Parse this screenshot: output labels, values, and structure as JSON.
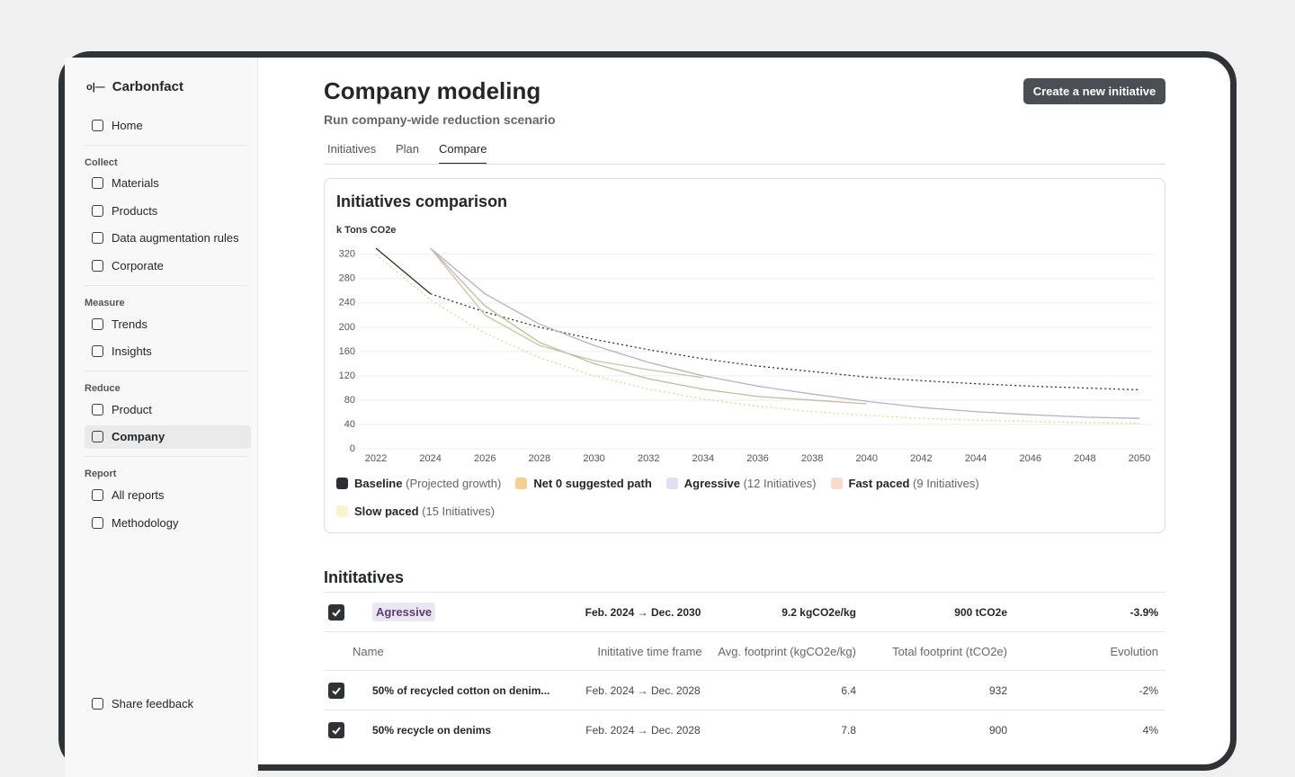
{
  "sidebar": {
    "brand": "Carbonfact",
    "home": "Home",
    "sections": [
      {
        "title": "Collect",
        "items": [
          "Materials",
          "Products",
          "Data augmentation rules",
          "Corporate"
        ]
      },
      {
        "title": "Measure",
        "items": [
          "Trends",
          "Insights"
        ]
      },
      {
        "title": "Reduce",
        "items": [
          "Product",
          "Company"
        ]
      },
      {
        "title": "Report",
        "items": [
          "All reports",
          "Methodology"
        ]
      }
    ],
    "active": [
      2,
      1
    ],
    "footer": "Share feedback"
  },
  "header": {
    "title": "Company modeling",
    "subtitle": "Run company-wide reduction scenario",
    "button": "Create a new initiative"
  },
  "tabs": {
    "items": [
      "Initiatives",
      "Plan",
      "Compare"
    ],
    "active": 2
  },
  "chart_data": {
    "type": "line",
    "title": "Initiatives comparison",
    "y_label": "k Tons CO2e",
    "x": [
      2022,
      2024,
      2026,
      2028,
      2030,
      2032,
      2034,
      2036,
      2038,
      2040,
      2042,
      2044,
      2046,
      2048,
      2050
    ],
    "xlim": [
      2022,
      2050
    ],
    "xticks": [
      2022,
      2024,
      2026,
      2028,
      2030,
      2032,
      2034,
      2036,
      2038,
      2040,
      2042,
      2044,
      2046,
      2048,
      2050
    ],
    "ylim": [
      0,
      330
    ],
    "yticks": [
      0,
      40,
      80,
      120,
      160,
      200,
      240,
      280,
      320
    ],
    "grid": true,
    "series": [
      {
        "name": "Baseline",
        "detail": "(Projected growth)",
        "color": "#2b2f33",
        "legend_color": "#2b2f33",
        "solid_until": 2024,
        "values": [
          330,
          255,
          225,
          200,
          180,
          163,
          148,
          136,
          127,
          118,
          112,
          107,
          103,
          100,
          97
        ]
      },
      {
        "name": "Net 0 suggested path",
        "color": "#e4d58c",
        "legend_color": "#f7cf94",
        "dash": true,
        "values": [
          320,
          245,
          190,
          150,
          120,
          98,
          82,
          70,
          61,
          55,
          50,
          47,
          45,
          43,
          42
        ]
      },
      {
        "name": "Agressive",
        "detail": "(12 Initiatives)",
        "color": "#b9aecb",
        "legend_color": "#e3def0",
        "values": [
          null,
          330,
          255,
          205,
          170,
          142,
          120,
          103,
          90,
          78,
          68,
          61,
          56,
          52,
          50
        ]
      },
      {
        "name": "Fast paced",
        "detail": "(9 Initiatives)",
        "color": "#c9b89c",
        "legend_color": "#f7dccb",
        "values": [
          null,
          330,
          235,
          175,
          140,
          115,
          98,
          86,
          80,
          74,
          null,
          null,
          null,
          null,
          null
        ]
      },
      {
        "name": "Slow paced",
        "detail": "(15 Initiatives)",
        "color": "#cfc2a3",
        "legend_color": "#f8f5cc",
        "values": [
          null,
          330,
          220,
          170,
          145,
          130,
          117,
          null,
          null,
          null,
          null,
          null,
          null,
          null,
          null
        ]
      }
    ]
  },
  "table": {
    "title": "Inititatives",
    "group": {
      "checked": true,
      "name": "Agressive",
      "time_frame": "Feb. 2024 → Dec. 2030",
      "avg": "9.2 kgCO2e/kg",
      "total": "900 tCO2e",
      "evolution": "-3.9%"
    },
    "columns": [
      "Name",
      "Inititative  time frame",
      "Avg. footprint (kgCO2e/kg)",
      "Total footprint (tCO2e)",
      "Evolution"
    ],
    "rows": [
      [
        "50% of recycled cotton on denim...",
        "Feb. 2024 → Dec. 2028",
        "6.4",
        "932",
        "-2%"
      ],
      [
        "50% recycle on denims",
        "Feb. 2024 → Dec. 2028",
        "7.8",
        "900",
        "4%"
      ]
    ]
  }
}
